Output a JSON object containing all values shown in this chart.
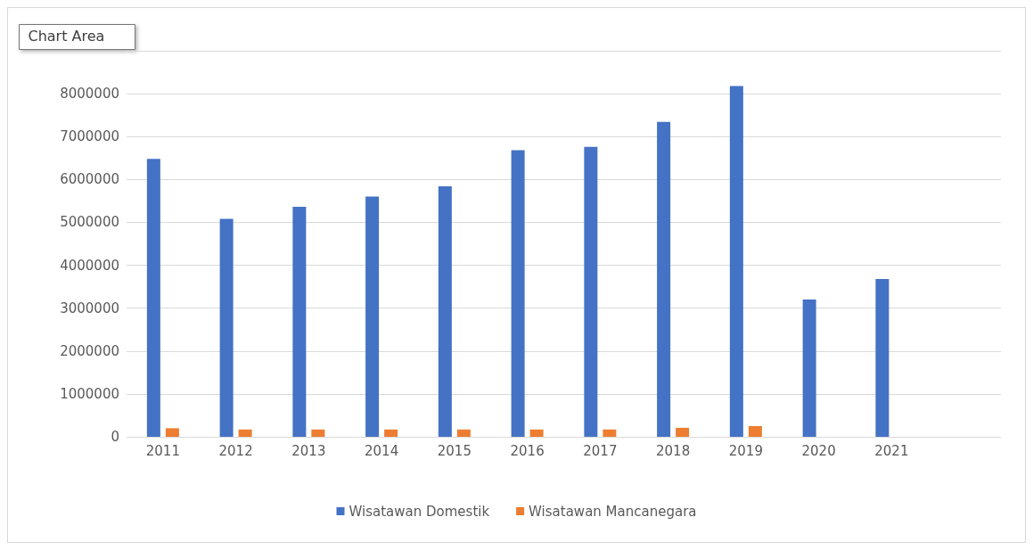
{
  "chart_data": {
    "type": "bar",
    "categories": [
      "2011",
      "2012",
      "2013",
      "2014",
      "2015",
      "2016",
      "2017",
      "2018",
      "2019",
      "2020",
      "2021",
      null
    ],
    "series": [
      {
        "name": "Wisatawan Domestik",
        "color": "#4472c4",
        "values": [
          6480000,
          5080000,
          5360000,
          5600000,
          5840000,
          6680000,
          6760000,
          7340000,
          8180000,
          3200000,
          3680000,
          null
        ]
      },
      {
        "name": "Wisatawan Mancanegara",
        "color": "#ed7d31",
        "values": [
          200000,
          170000,
          170000,
          170000,
          170000,
          170000,
          170000,
          210000,
          250000,
          0,
          0,
          null
        ]
      }
    ],
    "ylim": [
      0,
      9000000
    ],
    "yticks": [
      0,
      1000000,
      2000000,
      3000000,
      4000000,
      5000000,
      6000000,
      7000000,
      8000000,
      {
        "value": 9000000,
        "label": null
      }
    ],
    "grid": "y",
    "legend": "bottom",
    "annotations": [
      "Chart Area"
    ]
  }
}
